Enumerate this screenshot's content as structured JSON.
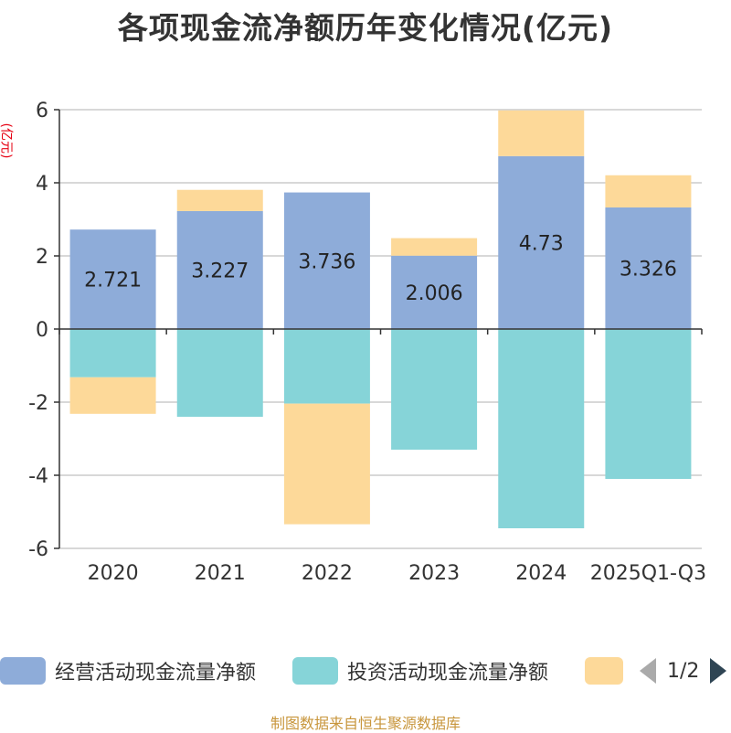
{
  "chart_data": {
    "type": "bar",
    "stacked": true,
    "title": "各项现金流净额历年变化情况(亿元)",
    "ylabel": "(亿元)",
    "xlabel": "",
    "categories": [
      "2020",
      "2021",
      "2022",
      "2023",
      "2024",
      "2025Q1-Q3"
    ],
    "ylim": [
      -6,
      6
    ],
    "yticks": [
      6,
      4,
      2,
      0,
      -2,
      -4,
      -6
    ],
    "series": [
      {
        "name": "经营活动现金流量净额",
        "color": "#8eacd9",
        "values": [
          2.721,
          3.227,
          3.736,
          2.006,
          4.73,
          3.326
        ],
        "labels": [
          "2.721",
          "3.227",
          "3.736",
          "2.006",
          "4.73",
          "3.326"
        ]
      },
      {
        "name": "投资活动现金流量净额",
        "color": "#86d4d8",
        "values": [
          -1.32,
          -2.4,
          -2.04,
          -3.3,
          -5.45,
          -4.1
        ]
      },
      {
        "name": "",
        "color": "#fdd999",
        "values": [
          -1.0,
          0.58,
          -3.3,
          0.48,
          1.25,
          0.88
        ]
      }
    ],
    "legend_position": "bottom"
  },
  "legend": {
    "items": [
      {
        "label": "经营活动现金流量净额",
        "color": "#8eacd9"
      },
      {
        "label": "投资活动现金流量净额",
        "color": "#86d4d8"
      },
      {
        "label": "",
        "color": "#fdd999"
      }
    ],
    "page": "1/2"
  },
  "source": "制图数据来自恒生聚源数据库"
}
